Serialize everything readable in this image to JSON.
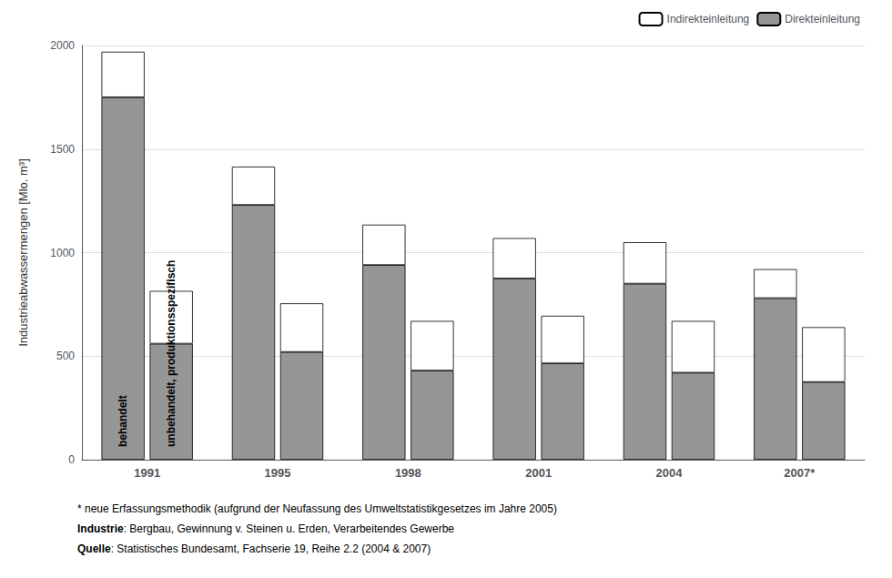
{
  "chart_data": {
    "type": "bar",
    "stacked": true,
    "categories": [
      "1991",
      "1995",
      "1998",
      "2001",
      "2004",
      "2007*"
    ],
    "ylabel": "Industrieabwassermengen [Mlo. m³]",
    "ylim": [
      0,
      2000
    ],
    "yticks": [
      0,
      500,
      1000,
      1500,
      2000
    ],
    "grid": true,
    "legend": "upper right",
    "groups": [
      {
        "label": "behandelt",
        "series": [
          {
            "name": "Direkteinleitung",
            "color": "#969696",
            "values": [
              1750,
              1230,
              940,
              875,
              850,
              780
            ]
          },
          {
            "name": "Indirekteinleitung",
            "color": "#ffffff",
            "values": [
              220,
              185,
              195,
              195,
              200,
              140
            ]
          }
        ]
      },
      {
        "label": "unbehandelt, produktionsspezifisch",
        "series": [
          {
            "name": "Direkteinleitung",
            "color": "#969696",
            "values": [
              560,
              520,
              430,
              465,
              420,
              375
            ]
          },
          {
            "name": "Indirekteinleitung",
            "color": "#ffffff",
            "values": [
              255,
              235,
              240,
              230,
              250,
              265
            ]
          }
        ]
      }
    ],
    "footnotes": [
      {
        "text": "* neue Erfassungsmethodik (aufgrund der Neufassung des Umweltstatistikgesetzes im Jahre 2005)"
      },
      {
        "bold": "Industrie",
        "text": ": Bergbau, Gewinnung v. Steinen u. Erden, Verarbeitendes Gewerbe"
      },
      {
        "bold": "Quelle",
        "text": ": Statistisches Bundesamt, Fachserie 19, Reihe 2.2 (2004 & 2007)"
      }
    ]
  }
}
